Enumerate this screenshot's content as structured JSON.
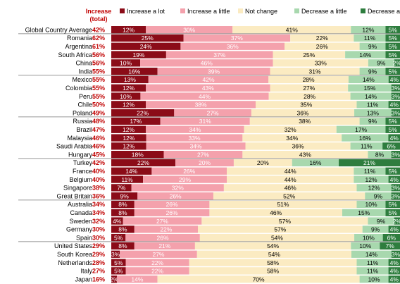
{
  "chart_data": {
    "type": "bar",
    "stacked": true,
    "orientation": "horizontal",
    "increase_header": "Increase (total)",
    "legend_position": "top",
    "series": [
      {
        "name": "Increase a lot",
        "color": "#8b0c18"
      },
      {
        "name": "Increase a little",
        "color": "#f4a1ac"
      },
      {
        "name": "Not change",
        "color": "#fbebc2"
      },
      {
        "name": "Decrease a little",
        "color": "#a8d8ae"
      },
      {
        "name": "Decrease a lot",
        "color": "#2e7d3e"
      }
    ],
    "rows": [
      {
        "country": "Global Country Average",
        "total": "42%",
        "values": [
          12,
          30,
          41,
          12,
          5
        ]
      },
      {
        "country": "Romania",
        "total": "62%",
        "values": [
          25,
          37,
          22,
          11,
          5
        ]
      },
      {
        "country": "Argentina",
        "total": "61%",
        "values": [
          24,
          36,
          26,
          9,
          5
        ]
      },
      {
        "country": "South Africa",
        "total": "56%",
        "values": [
          19,
          37,
          25,
          14,
          5
        ]
      },
      {
        "country": "China",
        "total": "56%",
        "values": [
          10,
          46,
          33,
          9,
          2
        ]
      },
      {
        "country": "India",
        "total": "55%",
        "values": [
          16,
          39,
          31,
          9,
          5
        ]
      },
      {
        "country": "Mexico",
        "total": "55%",
        "values": [
          13,
          42,
          28,
          14,
          4
        ]
      },
      {
        "country": "Colombia",
        "total": "55%",
        "values": [
          12,
          43,
          27,
          15,
          3
        ]
      },
      {
        "country": "Peru",
        "total": "55%",
        "values": [
          10,
          44,
          28,
          14,
          3
        ]
      },
      {
        "country": "Chile",
        "total": "50%",
        "values": [
          12,
          38,
          35,
          11,
          4
        ]
      },
      {
        "country": "Poland",
        "total": "49%",
        "values": [
          22,
          27,
          36,
          13,
          3
        ]
      },
      {
        "country": "Russia",
        "total": "48%",
        "values": [
          17,
          31,
          38,
          9,
          5
        ]
      },
      {
        "country": "Brazil",
        "total": "47%",
        "values": [
          12,
          34,
          32,
          17,
          5
        ]
      },
      {
        "country": "Malaysia",
        "total": "46%",
        "values": [
          12,
          33,
          34,
          16,
          4
        ]
      },
      {
        "country": "Saudi Arabia",
        "total": "46%",
        "values": [
          12,
          34,
          36,
          11,
          6
        ]
      },
      {
        "country": "Hungary",
        "total": "45%",
        "values": [
          18,
          27,
          43,
          8,
          3
        ]
      },
      {
        "country": "Turkey",
        "total": "42%",
        "values": [
          22,
          20,
          20,
          16,
          21
        ]
      },
      {
        "country": "France",
        "total": "40%",
        "values": [
          14,
          26,
          44,
          11,
          5
        ]
      },
      {
        "country": "Belgium",
        "total": "40%",
        "values": [
          11,
          29,
          44,
          12,
          4
        ]
      },
      {
        "country": "Singapore",
        "total": "38%",
        "values": [
          7,
          32,
          46,
          12,
          3
        ]
      },
      {
        "country": "Great Britain",
        "total": "36%",
        "values": [
          9,
          26,
          52,
          9,
          3
        ]
      },
      {
        "country": "Australia",
        "total": "34%",
        "values": [
          8,
          26,
          51,
          10,
          5
        ]
      },
      {
        "country": "Canada",
        "total": "34%",
        "values": [
          8,
          26,
          46,
          15,
          5
        ]
      },
      {
        "country": "Sweden",
        "total": "32%",
        "values": [
          4,
          27,
          57,
          9,
          2
        ]
      },
      {
        "country": "Germany",
        "total": "30%",
        "values": [
          8,
          22,
          57,
          9,
          4
        ]
      },
      {
        "country": "Spain",
        "total": "30%",
        "values": [
          5,
          26,
          54,
          10,
          6
        ]
      },
      {
        "country": "United States",
        "total": "29%",
        "values": [
          8,
          21,
          54,
          10,
          7
        ]
      },
      {
        "country": "South Korea",
        "total": "29%",
        "values": [
          3,
          27,
          54,
          14,
          3
        ]
      },
      {
        "country": "Netherlands",
        "total": "28%",
        "values": [
          5,
          22,
          58,
          11,
          4
        ]
      },
      {
        "country": "Italy",
        "total": "27%",
        "values": [
          5,
          22,
          58,
          11,
          4
        ]
      },
      {
        "country": "Japan",
        "total": "16%",
        "values": [
          2,
          14,
          70,
          10,
          4
        ]
      }
    ]
  }
}
